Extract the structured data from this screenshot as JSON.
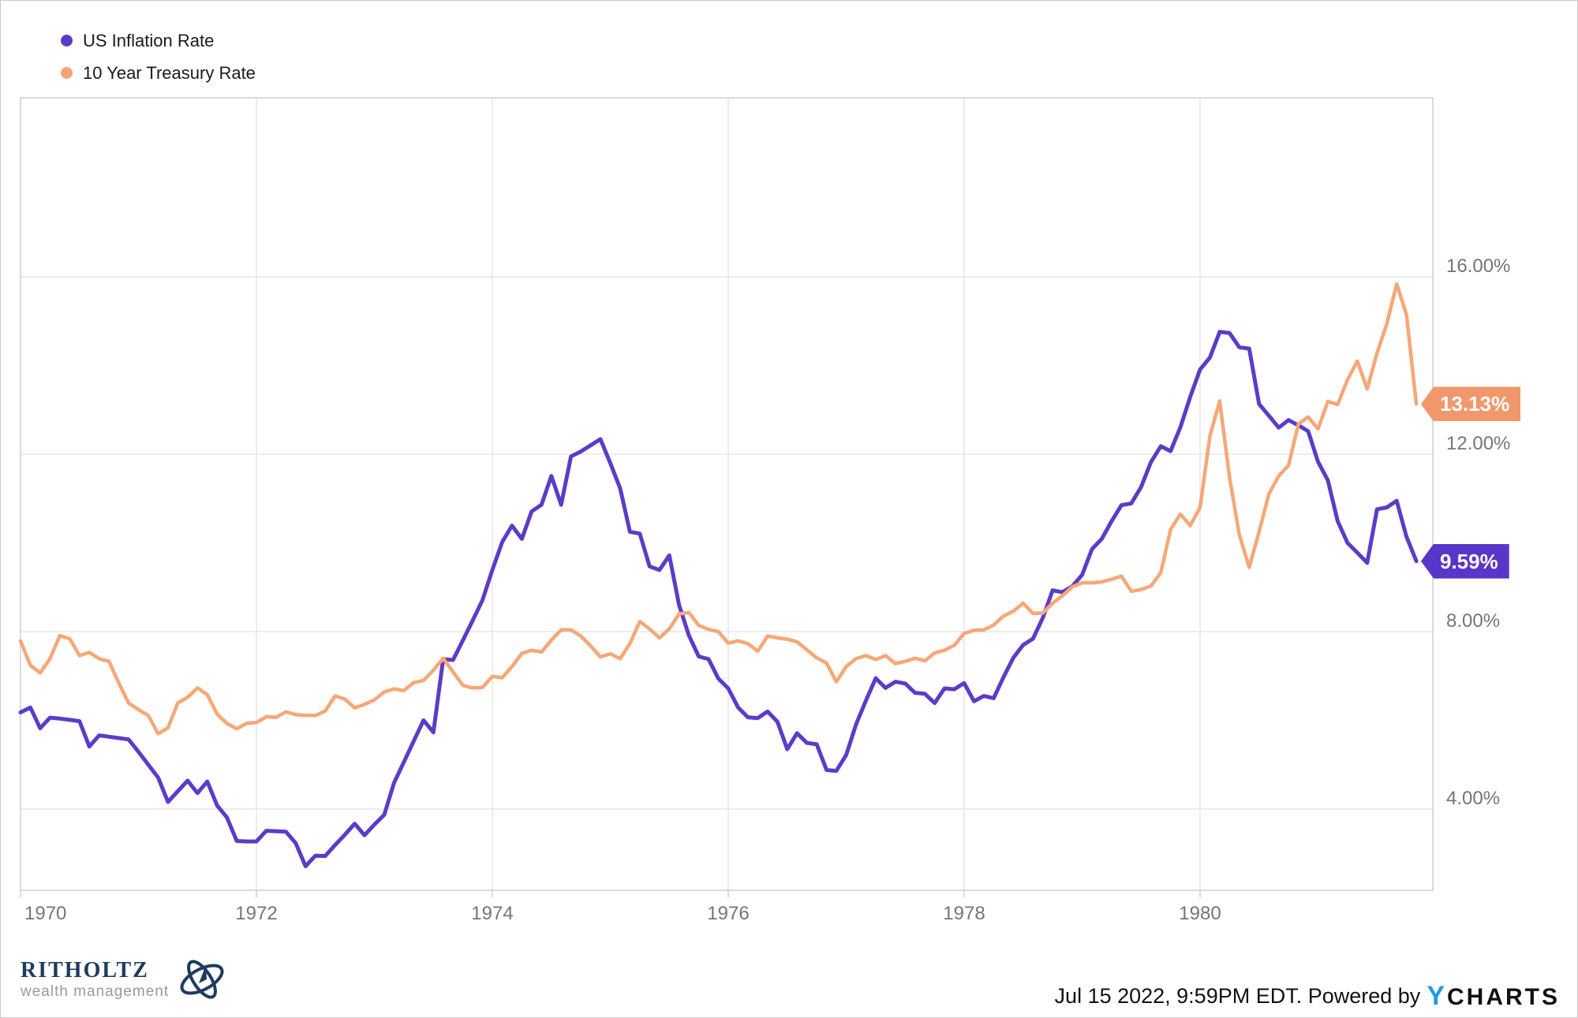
{
  "legend": {
    "items": [
      {
        "label": "US Inflation Rate",
        "color": "#5B3CC8"
      },
      {
        "label": "10 Year Treasury Rate",
        "color": "#F7A474"
      }
    ]
  },
  "chart_data": {
    "type": "line",
    "title": "",
    "xlabel": "",
    "ylabel": "",
    "grid": true,
    "legend_position": "top-left",
    "y_axis": {
      "side": "right",
      "unit": "%",
      "domain": [
        2.17,
        20.04
      ],
      "tick_values": [
        16,
        12,
        8,
        4
      ],
      "tick_labels": [
        "16.00%",
        "12.00%",
        "8.00%",
        "4.00%"
      ]
    },
    "x_axis": {
      "start_year": 1970,
      "end_year": 1981.97,
      "points_per_year": 12,
      "tick_years": [
        1970,
        1972,
        1974,
        1976,
        1978,
        1980
      ],
      "tick_labels": [
        "1970",
        "1972",
        "1974",
        "1976",
        "1978",
        "1980"
      ],
      "grid_years": [
        1972,
        1974,
        1976,
        1978,
        1980
      ]
    },
    "series": [
      {
        "name": "US Inflation Rate",
        "color": "#5B3CC8",
        "callout_color": "#5A35C9",
        "end_label": "9.59%",
        "end_value": 9.59,
        "stroke_width": 5,
        "values": [
          6.18,
          6.29,
          5.82,
          6.06,
          6.04,
          6.01,
          5.98,
          5.41,
          5.66,
          5.63,
          5.6,
          5.57,
          5.29,
          5.0,
          4.71,
          4.16,
          4.4,
          4.64,
          4.36,
          4.62,
          4.08,
          3.81,
          3.28,
          3.27,
          3.27,
          3.51,
          3.5,
          3.49,
          3.23,
          2.71,
          2.95,
          2.94,
          3.19,
          3.42,
          3.67,
          3.41,
          3.65,
          3.87,
          4.59,
          5.06,
          5.53,
          6.0,
          5.73,
          7.38,
          7.36,
          7.8,
          8.25,
          8.71,
          9.39,
          10.02,
          10.39,
          10.09,
          10.71,
          10.86,
          11.51,
          10.86,
          11.95,
          12.06,
          12.2,
          12.34,
          11.8,
          11.23,
          10.25,
          10.21,
          9.47,
          9.39,
          9.72,
          8.6,
          7.91,
          7.44,
          7.38,
          6.94,
          6.72,
          6.29,
          6.07,
          6.05,
          6.2,
          5.97,
          5.35,
          5.71,
          5.49,
          5.46,
          4.88,
          4.86,
          5.22,
          5.91,
          6.44,
          6.95,
          6.73,
          6.87,
          6.83,
          6.62,
          6.6,
          6.39,
          6.72,
          6.7,
          6.84,
          6.43,
          6.55,
          6.5,
          6.97,
          7.41,
          7.7,
          7.84,
          8.31,
          8.93,
          8.89,
          9.02,
          9.28,
          9.86,
          10.09,
          10.49,
          10.85,
          10.89,
          11.26,
          11.82,
          12.18,
          12.07,
          12.61,
          13.29,
          13.91,
          14.18,
          14.76,
          14.73,
          14.41,
          14.38,
          13.13,
          12.87,
          12.6,
          12.77,
          12.65,
          12.52,
          11.83,
          11.41,
          10.49,
          10.0,
          9.78,
          9.55,
          10.76,
          10.8,
          10.95,
          10.14,
          9.59
        ]
      },
      {
        "name": "10 Year Treasury Rate",
        "color": "#F7A777",
        "callout_color": "#F0986B",
        "end_label": "13.13%",
        "end_value": 13.13,
        "stroke_width": 4.5,
        "values": [
          7.79,
          7.24,
          7.07,
          7.39,
          7.91,
          7.84,
          7.46,
          7.53,
          7.39,
          7.33,
          6.84,
          6.39,
          6.24,
          6.11,
          5.7,
          5.83,
          6.39,
          6.52,
          6.73,
          6.58,
          6.14,
          5.93,
          5.81,
          5.93,
          5.95,
          6.08,
          6.07,
          6.19,
          6.13,
          6.11,
          6.11,
          6.21,
          6.55,
          6.48,
          6.28,
          6.36,
          6.46,
          6.64,
          6.71,
          6.67,
          6.85,
          6.9,
          7.13,
          7.4,
          7.09,
          6.79,
          6.73,
          6.74,
          6.99,
          6.96,
          7.21,
          7.51,
          7.58,
          7.54,
          7.81,
          8.04,
          8.04,
          7.9,
          7.68,
          7.43,
          7.5,
          7.39,
          7.73,
          8.23,
          8.06,
          7.86,
          8.06,
          8.4,
          8.43,
          8.14,
          8.05,
          8.0,
          7.74,
          7.79,
          7.73,
          7.56,
          7.9,
          7.86,
          7.83,
          7.77,
          7.59,
          7.41,
          7.29,
          6.87,
          7.21,
          7.39,
          7.46,
          7.37,
          7.46,
          7.28,
          7.33,
          7.4,
          7.34,
          7.52,
          7.58,
          7.69,
          7.96,
          8.03,
          8.04,
          8.15,
          8.35,
          8.46,
          8.64,
          8.41,
          8.42,
          8.64,
          8.81,
          9.01,
          9.1,
          9.1,
          9.12,
          9.18,
          9.25,
          8.91,
          8.95,
          9.03,
          9.33,
          10.3,
          10.65,
          10.39,
          10.8,
          12.41,
          13.2,
          11.47,
          10.18,
          9.45,
          10.25,
          11.1,
          11.51,
          11.75,
          12.68,
          12.84,
          12.57,
          13.19,
          13.12,
          13.68,
          14.1,
          13.47,
          14.28,
          14.94,
          15.84,
          15.15,
          13.13
        ]
      }
    ]
  },
  "branding": {
    "name": "RITHOLTZ",
    "subtitle": "wealth management"
  },
  "footer": {
    "note": "Jul 15 2022, 9:59PM EDT. Powered by",
    "ycharts_y": "Y",
    "ycharts_charts": "CHARTS"
  },
  "colors": {
    "gridline": "#E7E7E7",
    "plot_border": "#CFCFCF",
    "tick_text": "#757575",
    "legend_text": "#1A1A1A",
    "background": "#FFFFFF",
    "page_border": "#C9C9C9",
    "ycharts_blue": "#1E9BE9",
    "ritholtz_navy": "#1F3A5F",
    "ritholtz_gray": "#9A9A9A"
  }
}
